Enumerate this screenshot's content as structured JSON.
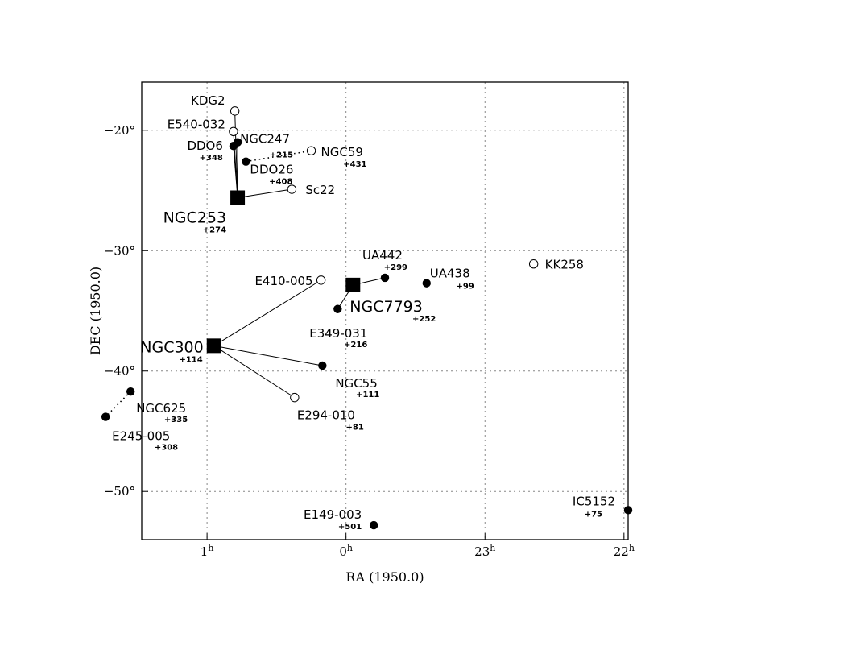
{
  "chart_data": {
    "type": "scatter",
    "title": "",
    "xlabel": "RA  (1950.0)",
    "ylabel": "DEC  (1950.0)",
    "xlim_hours": [
      1.47,
      21.97
    ],
    "ylim": [
      -54.0,
      -16.0
    ],
    "x_ticks": [
      {
        "hours": 1.0,
        "base": "1",
        "sup": "h"
      },
      {
        "hours": 0.0,
        "base": "0",
        "sup": "h"
      },
      {
        "hours": 23.0,
        "base": "23",
        "sup": "h"
      },
      {
        "hours": 22.0,
        "base": "22",
        "sup": "h"
      }
    ],
    "y_ticks": [
      {
        "value": -20,
        "label": "−20°"
      },
      {
        "value": -30,
        "label": "−30°"
      },
      {
        "value": -40,
        "label": "−40°"
      },
      {
        "value": -50,
        "label": "−50°"
      }
    ],
    "grid": true,
    "marker_legend": {
      "square": "group center",
      "filled": "filled circle",
      "open": "open circle"
    },
    "points": [
      {
        "id": "NGC253",
        "name": "NGC253",
        "vel": "+274",
        "ra": 0.78,
        "dec": -25.6,
        "marker": "square",
        "big": true
      },
      {
        "id": "NGC300",
        "name": "NGC300",
        "vel": "+114",
        "ra": 0.95,
        "dec": -37.9,
        "marker": "square",
        "big": true
      },
      {
        "id": "NGC7793",
        "name": "NGC7793",
        "vel": "+252",
        "ra": 23.95,
        "dec": -32.85,
        "marker": "square",
        "big": true
      },
      {
        "id": "KDG2",
        "name": "KDG2",
        "vel": "",
        "ra": 0.8,
        "dec": -18.4,
        "marker": "open"
      },
      {
        "id": "E540",
        "name": "E540-032",
        "vel": "",
        "ra": 0.81,
        "dec": -20.1,
        "marker": "open"
      },
      {
        "id": "NGC247",
        "name": "NGC247",
        "vel": "+215",
        "ra": 0.78,
        "dec": -21.0,
        "marker": "filled"
      },
      {
        "id": "DDO6",
        "name": "DDO6",
        "vel": "+348",
        "ra": 0.81,
        "dec": -21.3,
        "marker": "filled"
      },
      {
        "id": "DDO26",
        "name": "DDO26",
        "vel": "+408",
        "ra": 0.72,
        "dec": -22.6,
        "marker": "filled"
      },
      {
        "id": "NGC59",
        "name": "NGC59",
        "vel": "+431",
        "ra": 0.25,
        "dec": -21.7,
        "marker": "open"
      },
      {
        "id": "Sc22",
        "name": "Sc22",
        "vel": "",
        "ra": 0.39,
        "dec": -24.9,
        "marker": "open"
      },
      {
        "id": "UA442",
        "name": "UA442",
        "vel": "+299",
        "ra": 23.72,
        "dec": -32.25,
        "marker": "filled"
      },
      {
        "id": "UA438",
        "name": "UA438",
        "vel": "+99",
        "ra": 23.42,
        "dec": -32.7,
        "marker": "filled"
      },
      {
        "id": "KK258",
        "name": "KK258",
        "vel": "",
        "ra": 22.65,
        "dec": -31.1,
        "marker": "open"
      },
      {
        "id": "E410",
        "name": "E410-005",
        "vel": "",
        "ra": 0.18,
        "dec": -32.45,
        "marker": "open"
      },
      {
        "id": "E349",
        "name": "E349-031",
        "vel": "+216",
        "ra": 0.06,
        "dec": -34.85,
        "marker": "filled"
      },
      {
        "id": "NGC55",
        "name": "NGC55",
        "vel": "+111",
        "ra": 0.17,
        "dec": -39.55,
        "marker": "filled"
      },
      {
        "id": "E294",
        "name": "E294-010",
        "vel": "+81",
        "ra": 0.37,
        "dec": -42.2,
        "marker": "open"
      },
      {
        "id": "NGC625",
        "name": "NGC625",
        "vel": "+335",
        "ra": 1.55,
        "dec": -41.7,
        "marker": "filled"
      },
      {
        "id": "E245",
        "name": "E245-005",
        "vel": "+308",
        "ra": 1.73,
        "dec": -43.8,
        "marker": "filled"
      },
      {
        "id": "E149",
        "name": "E149-003",
        "vel": "+501",
        "ra": 23.8,
        "dec": -52.8,
        "marker": "filled"
      },
      {
        "id": "IC5152",
        "name": "IC5152",
        "vel": "+75",
        "ra": 21.97,
        "dec": -51.55,
        "marker": "filled"
      }
    ],
    "connections": [
      {
        "from": "NGC253",
        "to": "KDG2",
        "style": "solid"
      },
      {
        "from": "NGC253",
        "to": "E540",
        "style": "solid"
      },
      {
        "from": "NGC253",
        "to": "NGC247",
        "style": "solid"
      },
      {
        "from": "NGC253",
        "to": "DDO6",
        "style": "solid"
      },
      {
        "from": "NGC253",
        "to": "Sc22",
        "style": "solid"
      },
      {
        "from": "DDO26",
        "to": "NGC59",
        "style": "dotted"
      },
      {
        "from": "NGC300",
        "to": "E410",
        "style": "solid"
      },
      {
        "from": "NGC300",
        "to": "NGC55",
        "style": "solid"
      },
      {
        "from": "NGC300",
        "to": "E294",
        "style": "solid"
      },
      {
        "from": "NGC7793",
        "to": "UA442",
        "style": "solid"
      },
      {
        "from": "NGC7793",
        "to": "E349",
        "style": "solid"
      },
      {
        "from": "NGC625",
        "to": "E245",
        "style": "dotted"
      }
    ]
  }
}
